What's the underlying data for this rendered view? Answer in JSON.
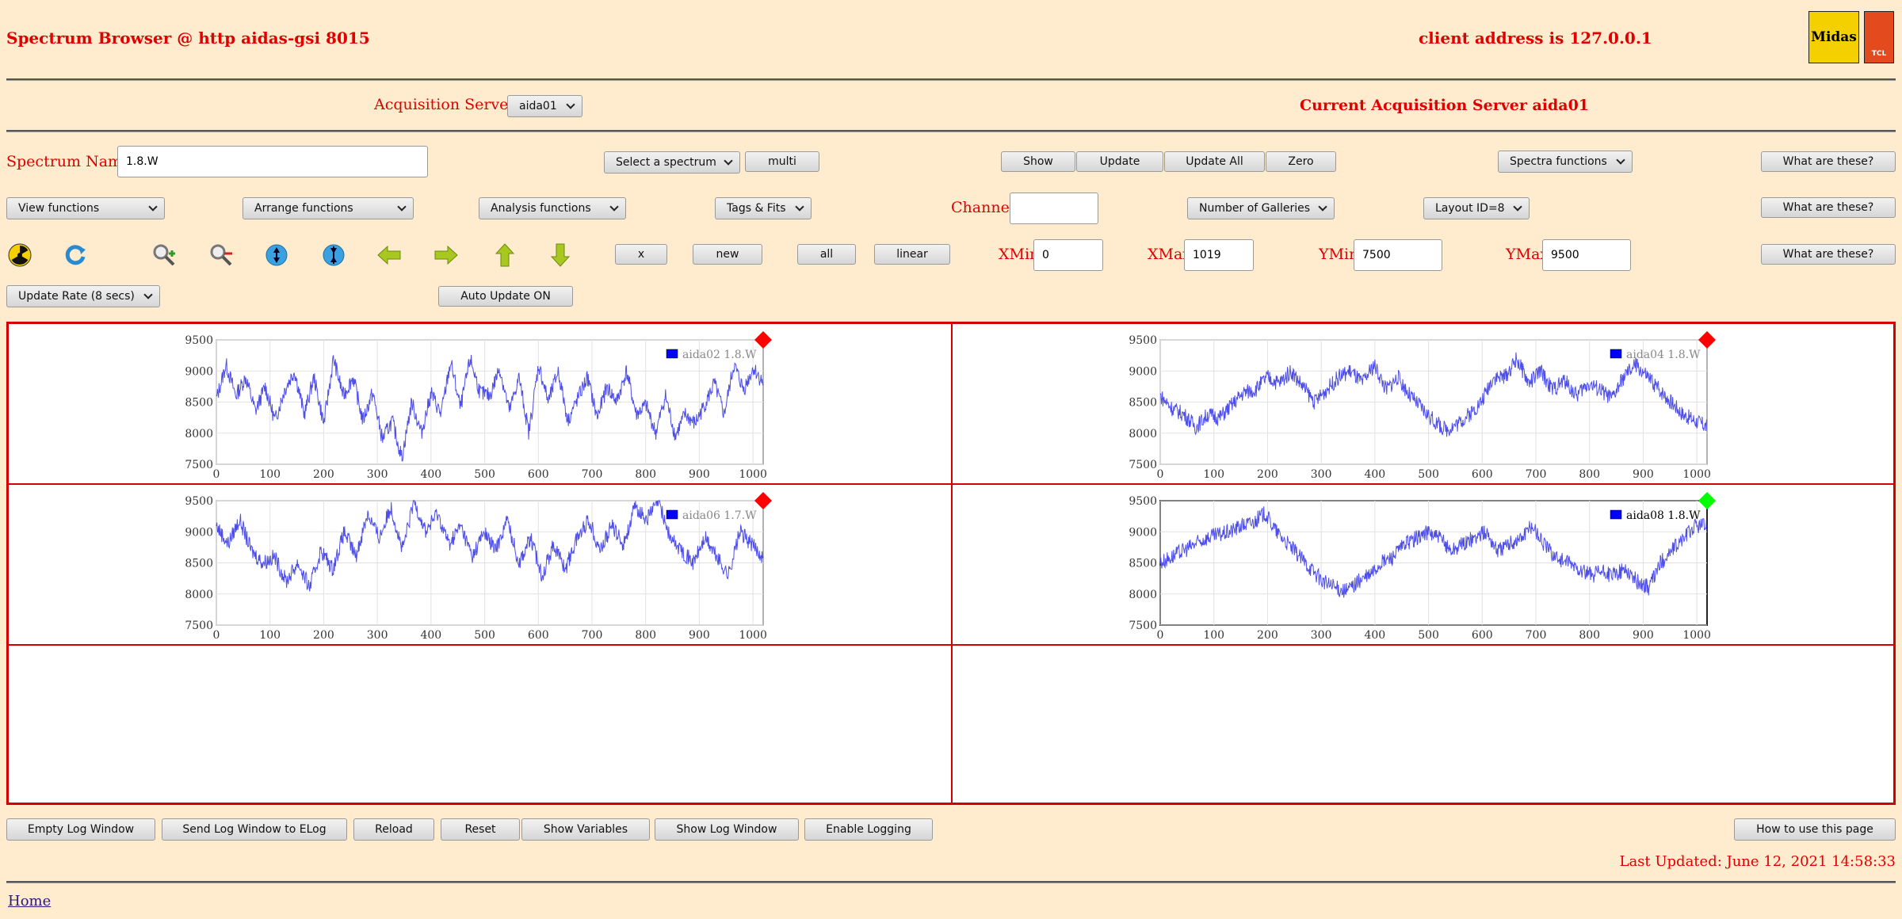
{
  "header": {
    "title": "Spectrum Browser @ http aidas-gsi 8015",
    "client_address": "client address is 127.0.0.1",
    "logo_midas": "Midas",
    "logo_tcl": "TCL"
  },
  "servers": {
    "label": "Acquisition Servers",
    "selected": "aida01",
    "current": "Current Acquisition Server aida01"
  },
  "row1": {
    "spectrum_name_label": "Spectrum Name:",
    "spectrum_name_value": "1.8.W",
    "select_spectrum": "Select a spectrum",
    "multi": "multi",
    "show": "Show",
    "update": "Update",
    "update_all": "Update All",
    "zero": "Zero",
    "spectra_functions": "Spectra functions",
    "what": "What are these?"
  },
  "row2": {
    "view_functions": "View functions",
    "arrange_functions": "Arrange functions",
    "analysis_functions": "Analysis functions",
    "tags_fits": "Tags & Fits",
    "channel_label": "Channel:",
    "channel_value": "",
    "galleries": "Number of Galleries",
    "layout": "Layout ID=8",
    "what": "What are these?"
  },
  "row3": {
    "x": "x",
    "new": "new",
    "all": "all",
    "linear": "linear",
    "xmin_label": "XMin",
    "xmin": "0",
    "xmax_label": "XMax",
    "xmax": "1019",
    "ymin_label": "YMin",
    "ymin": "7500",
    "ymax_label": "YMax",
    "ymax": "9500",
    "what": "What are these?",
    "icons": [
      "radiation-icon",
      "refresh-icon",
      "zoom-in-icon",
      "zoom-out-icon",
      "expand-vertical-icon",
      "compress-vertical-icon",
      "arrow-left-icon",
      "arrow-right-icon",
      "arrow-up-icon",
      "arrow-down-icon"
    ]
  },
  "row4": {
    "update_rate": "Update Rate (8 secs)",
    "auto_update": "Auto Update ON"
  },
  "chart_data": [
    {
      "type": "line",
      "series": [
        {
          "name": "aida02 1.8.W"
        }
      ],
      "xlim": [
        0,
        1019
      ],
      "ylim": [
        7500,
        9500
      ],
      "x_ticks": [
        "0",
        "100",
        "200",
        "300",
        "400",
        "500",
        "600",
        "700",
        "800",
        "900",
        "1000"
      ],
      "y_ticks": [
        "9500",
        "9000",
        "8500",
        "8000",
        "7500"
      ],
      "status_color": "#ff0000",
      "values": [
        8550,
        9100,
        8600,
        8900,
        8350,
        8750,
        8200,
        8700,
        9000,
        8300,
        8900,
        8150,
        9200,
        8600,
        8900,
        8200,
        8650,
        7900,
        8200,
        7600,
        8500,
        8000,
        8650,
        8300,
        9150,
        8400,
        9200,
        8650,
        8600,
        9050,
        8350,
        8900,
        8000,
        9100,
        8500,
        9000,
        8200,
        8550,
        8900,
        8250,
        8750,
        8500,
        9000,
        8300,
        8450,
        8000,
        8600,
        7950,
        8300,
        8150,
        8450,
        8800,
        8300,
        9100,
        8700,
        9050,
        8800
      ]
    },
    {
      "type": "line",
      "series": [
        {
          "name": "aida04 1.8.W"
        }
      ],
      "xlim": [
        0,
        1019
      ],
      "ylim": [
        7500,
        9500
      ],
      "x_ticks": [
        "0",
        "100",
        "200",
        "300",
        "400",
        "500",
        "600",
        "700",
        "800",
        "900",
        "1000"
      ],
      "y_ticks": [
        "9500",
        "9000",
        "8500",
        "8000",
        "7500"
      ],
      "status_color": "#ff0000",
      "values": [
        8600,
        8400,
        8300,
        8100,
        8300,
        8250,
        8450,
        8650,
        8700,
        8900,
        8800,
        9000,
        8750,
        8500,
        8700,
        8900,
        9000,
        8800,
        9100,
        8700,
        8900,
        8600,
        8400,
        8200,
        8050,
        8150,
        8300,
        8500,
        8900,
        8900,
        9200,
        8800,
        9000,
        8700,
        8850,
        8600,
        8800,
        8700,
        8550,
        8900,
        9100,
        8900,
        8700,
        8500,
        8300,
        8200,
        8100
      ]
    },
    {
      "type": "line",
      "series": [
        {
          "name": "aida06 1.7.W"
        }
      ],
      "xlim": [
        0,
        1019
      ],
      "ylim": [
        7500,
        9500
      ],
      "x_ticks": [
        "0",
        "100",
        "200",
        "300",
        "400",
        "500",
        "600",
        "700",
        "800",
        "900",
        "1000"
      ],
      "y_ticks": [
        "9500",
        "9000",
        "8500",
        "8000",
        "7500"
      ],
      "status_color": "#ff0000",
      "values": [
        9100,
        8800,
        9200,
        8700,
        8500,
        8600,
        8200,
        8500,
        8100,
        8700,
        8400,
        9000,
        8600,
        9300,
        8900,
        9400,
        8700,
        9500,
        9000,
        9300,
        8800,
        9100,
        8600,
        9000,
        8700,
        9200,
        8500,
        8900,
        8300,
        8800,
        8400,
        8900,
        9200,
        8700,
        9100,
        8800,
        9400,
        9200,
        9500,
        8900,
        8700,
        8500,
        8900,
        8600,
        8300,
        9000,
        8800,
        8600
      ]
    },
    {
      "type": "line",
      "series": [
        {
          "name": "aida08 1.8.W"
        }
      ],
      "xlim": [
        0,
        1019
      ],
      "ylim": [
        7500,
        9500
      ],
      "x_ticks": [
        "0",
        "100",
        "200",
        "300",
        "400",
        "500",
        "600",
        "700",
        "800",
        "900",
        "1000"
      ],
      "y_ticks": [
        "9500",
        "9000",
        "8500",
        "8000",
        "7500"
      ],
      "status_color": "#00ff00",
      "values": [
        8500,
        8600,
        8700,
        8800,
        8900,
        8950,
        9000,
        9100,
        9150,
        9300,
        9000,
        8800,
        8600,
        8400,
        8200,
        8100,
        8050,
        8200,
        8300,
        8500,
        8600,
        8800,
        8900,
        9000,
        8900,
        8700,
        8800,
        8900,
        9000,
        8700,
        8800,
        8900,
        9100,
        8800,
        8600,
        8500,
        8400,
        8300,
        8350,
        8300,
        8400,
        8200,
        8100,
        8500,
        8700,
        8900,
        9100,
        9100
      ]
    }
  ],
  "bottom": {
    "empty_log": "Empty Log Window",
    "send_log": "Send Log Window to ELog",
    "reload": "Reload",
    "reset": "Reset",
    "show_vars": "Show Variables",
    "show_log": "Show Log Window",
    "enable_logging": "Enable Logging",
    "how_to": "How to use this page",
    "last_updated": "Last Updated: June 12, 2021 14:58:33",
    "home": "Home"
  }
}
